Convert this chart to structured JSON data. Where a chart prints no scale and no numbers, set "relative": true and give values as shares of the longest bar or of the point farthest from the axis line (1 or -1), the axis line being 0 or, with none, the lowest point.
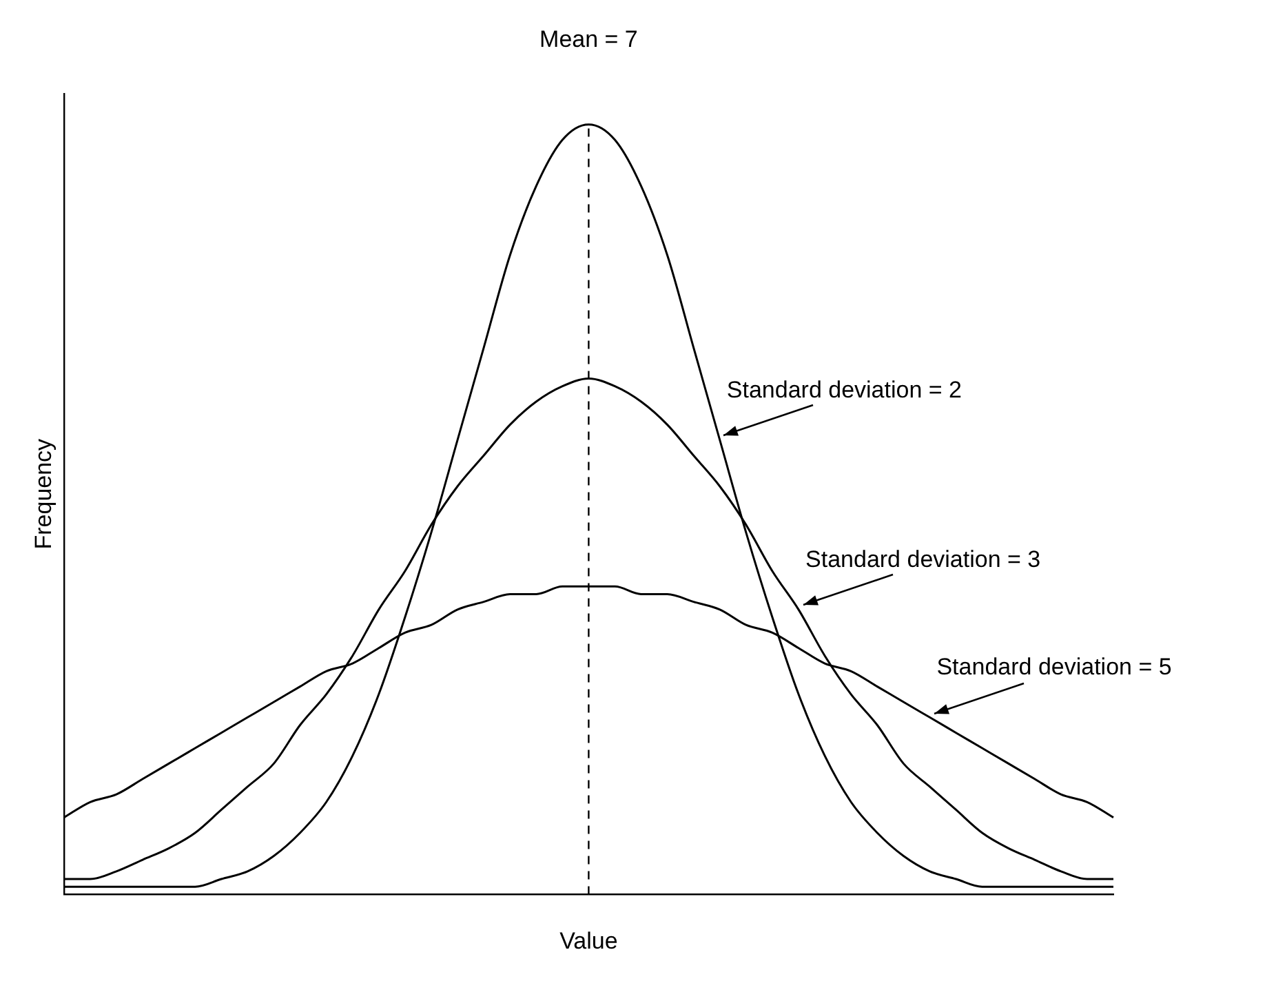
{
  "chart_data": {
    "type": "line",
    "relative": true,
    "xlabel": "Value",
    "ylabel": "Frequency",
    "categories": [
      null,
      null,
      null,
      null,
      null,
      null,
      null,
      null,
      null,
      null,
      null,
      null,
      null,
      null,
      null,
      null,
      null,
      null,
      null,
      null,
      null,
      null,
      null,
      null,
      null,
      null,
      null,
      null,
      null,
      null,
      null,
      null,
      null,
      null,
      null,
      null,
      null,
      null,
      null,
      null,
      null
    ],
    "series": [
      {
        "name": "Standard deviation = 2",
        "color": "#000000",
        "values": [
          0.01,
          0.01,
          0.01,
          0.01,
          0.01,
          0.01,
          0.02,
          0.03,
          0.05,
          0.08,
          0.12,
          0.18,
          0.26,
          0.36,
          0.47,
          0.59,
          0.71,
          0.83,
          0.92,
          0.98,
          1,
          0.98,
          0.92,
          0.83,
          0.71,
          0.59,
          0.47,
          0.36,
          0.26,
          0.18,
          0.12,
          0.08,
          0.05,
          0.03,
          0.02,
          0.01,
          0.01,
          0.01,
          0.01,
          0.01,
          0.01
        ]
      },
      {
        "name": "Standard deviation = 3",
        "color": "#000000",
        "values": [
          0.02,
          0.02,
          0.03,
          0.045,
          0.06,
          0.08,
          0.11,
          0.14,
          0.17,
          0.22,
          0.26,
          0.31,
          0.37,
          0.42,
          0.48,
          0.53,
          0.57,
          0.61,
          0.64,
          0.66,
          0.67,
          0.66,
          0.64,
          0.61,
          0.57,
          0.53,
          0.48,
          0.42,
          0.37,
          0.31,
          0.26,
          0.22,
          0.17,
          0.14,
          0.11,
          0.08,
          0.06,
          0.045,
          0.03,
          0.02,
          0.02
        ]
      },
      {
        "name": "Standard deviation = 5",
        "color": "#000000",
        "values": [
          0.1,
          0.12,
          0.13,
          0.15,
          0.17,
          0.19,
          0.21,
          0.23,
          0.25,
          0.27,
          0.29,
          0.3,
          0.32,
          0.34,
          0.35,
          0.37,
          0.38,
          0.39,
          0.39,
          0.4,
          0.4,
          0.4,
          0.39,
          0.39,
          0.38,
          0.37,
          0.35,
          0.34,
          0.32,
          0.3,
          0.29,
          0.27,
          0.25,
          0.23,
          0.21,
          0.19,
          0.17,
          0.15,
          0.13,
          0.12,
          0.1
        ]
      }
    ],
    "annotations": [
      "Mean = 7"
    ],
    "legend": false,
    "grid": false,
    "marker": "none",
    "line_style": "solid"
  }
}
